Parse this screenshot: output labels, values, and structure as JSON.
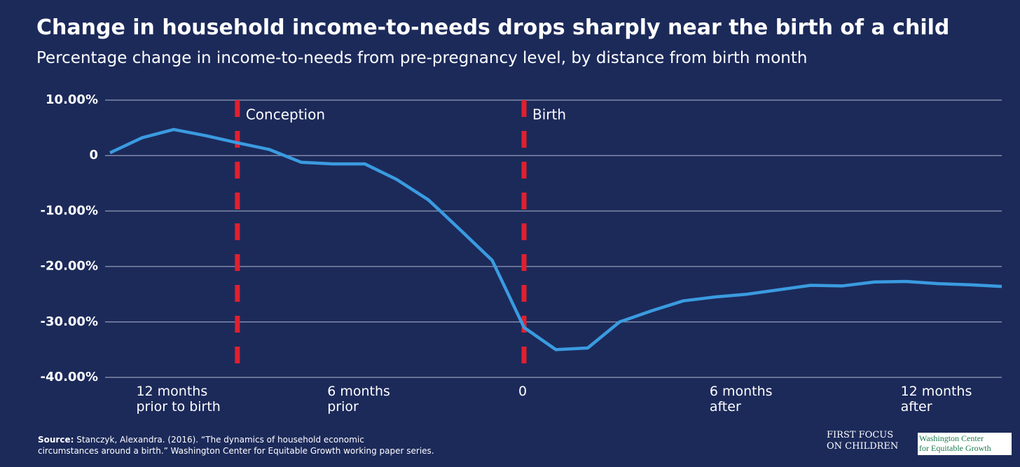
{
  "chart_data": {
    "type": "line",
    "title": "Change in household income-to-needs drops sharply near the birth of a child",
    "subtitle": "Percentage change in income-to-needs from pre-pregnancy level, by distance from birth month",
    "x": [
      -13,
      -12,
      -11,
      -10,
      -9,
      -8,
      -7,
      -6,
      -5,
      -4,
      -3,
      -2,
      -1,
      0,
      1,
      2,
      3,
      4,
      5,
      6,
      7,
      8,
      9,
      10,
      11,
      12,
      13,
      14,
      15
    ],
    "series": [
      {
        "name": "Income-to-needs change",
        "color": "#3a9be0",
        "values": [
          0.5,
          3.2,
          4.7,
          3.6,
          2.3,
          1.1,
          -1.2,
          -1.5,
          -1.5,
          -4.3,
          -8.0,
          -13.4,
          -18.9,
          -31.0,
          -35.0,
          -34.7,
          -30.0,
          -28.0,
          -26.2,
          -25.5,
          -25.0,
          -24.2,
          -23.4,
          -23.5,
          -22.8,
          -22.7,
          -23.1,
          -23.3,
          -23.6
        ]
      }
    ],
    "xlim": [
      -13,
      15
    ],
    "xticks": [
      {
        "value": -12,
        "label": "12 months\nprior to birth"
      },
      {
        "value": -6,
        "label": "6 months\nprior"
      },
      0,
      {
        "value": 6,
        "label": "6 months\nafter"
      },
      {
        "value": 12,
        "label": "12 months\nafter"
      }
    ],
    "ylim": [
      -40,
      10
    ],
    "yticks": [
      {
        "value": 10,
        "label": "10.00%"
      },
      0,
      {
        "value": -10,
        "label": "-10.00%"
      },
      {
        "value": -20,
        "label": "-20.00%"
      },
      {
        "value": -30,
        "label": "-30.00%"
      },
      {
        "value": -40,
        "label": "-40.00%"
      }
    ],
    "grid": true,
    "reference_lines": [
      {
        "x": -9,
        "label": "Conception",
        "color": "#e0202e"
      },
      {
        "x": 0,
        "label": "Birth",
        "color": "#e0202e"
      }
    ],
    "source_label": "Source:",
    "source_text": "Stanczyk, Alexandra. (2016). “The dynamics of household economic\ncircumstances around a birth.” Washington Center for Equitable Growth working paper series.",
    "logos": [
      "First Focus\non Children",
      "Washington Center\nfor Equitable Growth"
    ]
  }
}
